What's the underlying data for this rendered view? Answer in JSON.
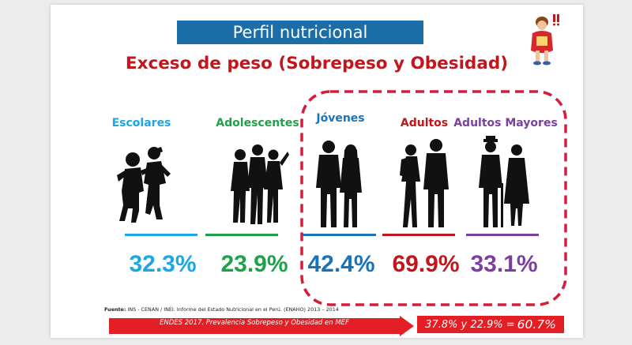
{
  "title": "Perfil nutricional",
  "subtitle": "Exceso de peso (Sobrepeso y Obesidad)",
  "groups": [
    {
      "label": "Escolares",
      "value": "32.3%",
      "color": "#1ba6e6"
    },
    {
      "label": "Adolescentes",
      "value": "23.9%",
      "color": "#1fa14a"
    },
    {
      "label": "Jóvenes",
      "value": "42.4%",
      "color": "#1a72b8"
    },
    {
      "label": "Adultos",
      "value": "69.9%",
      "color": "#c0161c"
    },
    {
      "label": "Adultos Mayores",
      "value": "33.1%",
      "color": "#7b3fa0"
    }
  ],
  "source": {
    "label": "Fuente:",
    "text": " INS - CENAN / INEI. Informe del Estado Nutricional en el Perú. (ENAHO) 2013 – 2014"
  },
  "endes": "ENDES 2017. Prevalencia Sobrepeso y Obesidad en MEF",
  "result": {
    "lead": "37.8% y 22.9% =",
    "total": "60.7%"
  },
  "colors": {
    "banner": "#1b6ea8",
    "accent": "#c0161c",
    "arrow": "#e31e24",
    "dash": "#d21e3a"
  },
  "icons": [
    "children-silhouette-icon",
    "teens-silhouette-icon",
    "young-couple-silhouette-icon",
    "adults-silhouette-icon",
    "elderly-couple-silhouette-icon",
    "cartoon-woman-icon"
  ]
}
